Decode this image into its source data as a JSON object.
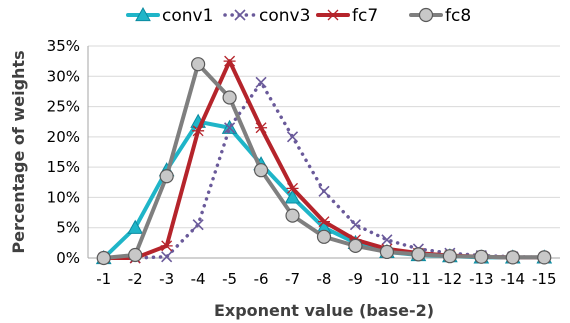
{
  "chart_data": {
    "type": "line",
    "title": "",
    "xlabel": "Exponent value (base-2)",
    "ylabel": "Percentage of weights",
    "categories": [
      "-1",
      "-2",
      "-3",
      "-4",
      "-5",
      "-6",
      "-7",
      "-8",
      "-9",
      "-10",
      "-11",
      "-12",
      "-13",
      "-14",
      "-15"
    ],
    "ylim": [
      0,
      35
    ],
    "yticks": [
      "0%",
      "5%",
      "10%",
      "15%",
      "20%",
      "25%",
      "30%",
      "35%"
    ],
    "ytick_values": [
      0,
      5,
      10,
      15,
      20,
      25,
      30,
      35
    ],
    "grid": true,
    "legend_position": "top",
    "series": [
      {
        "name": "conv1",
        "color": "#1fb5c8",
        "line_style": "solid",
        "marker": "triangle",
        "values": [
          0,
          5,
          14.5,
          22.5,
          21.5,
          15.5,
          10,
          5,
          2.5,
          1,
          0.5,
          0.3,
          0.1,
          0.1,
          0.1
        ]
      },
      {
        "name": "conv3",
        "color": "#6a5a9a",
        "line_style": "dotted",
        "marker": "x",
        "values": [
          0,
          0,
          0.2,
          5.5,
          21.5,
          29,
          20,
          11,
          5.5,
          3,
          1.5,
          0.8,
          0.4,
          0.2,
          0.1
        ]
      },
      {
        "name": "fc7",
        "color": "#b5242b",
        "line_style": "solid",
        "marker": "star",
        "values": [
          0,
          0,
          2,
          21,
          32.5,
          21.5,
          11.5,
          6,
          3,
          1.5,
          0.8,
          0.4,
          0.2,
          0.1,
          0.1
        ]
      },
      {
        "name": "fc8",
        "color": "#7f7f7f",
        "line_style": "solid",
        "marker": "circle",
        "values": [
          0,
          0.5,
          13.5,
          32,
          26.5,
          14.5,
          7,
          3.5,
          2,
          1,
          0.6,
          0.3,
          0.2,
          0.1,
          0.1
        ]
      }
    ]
  }
}
